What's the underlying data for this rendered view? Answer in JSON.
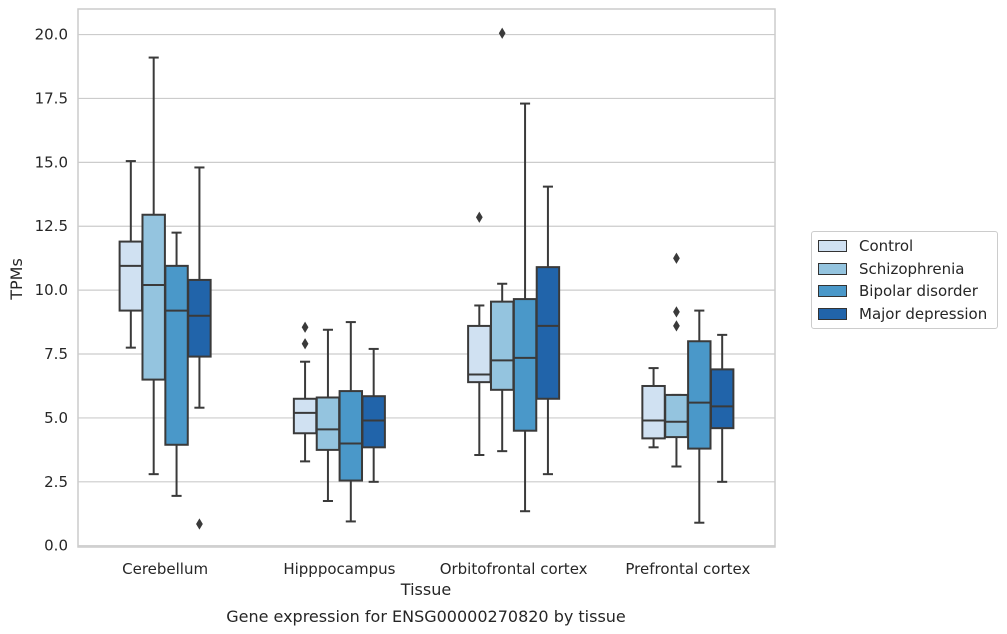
{
  "chart_data": {
    "type": "box",
    "title": "Gene expression for ENSG00000270820 by tissue",
    "xlabel": "Tissue",
    "ylabel": "TPMs",
    "ylim": [
      -0.05,
      21
    ],
    "yticks": [
      "0.0",
      "2.5",
      "5.0",
      "7.5",
      "10.0",
      "12.5",
      "15.0",
      "17.5",
      "20.0"
    ],
    "ytick_values": [
      0,
      2.5,
      5,
      7.5,
      10,
      12.5,
      15,
      17.5,
      20
    ],
    "grid": "horizontal",
    "legend_position": "right",
    "categories": [
      "Cerebellum",
      "Hipppocampus",
      "Orbitofrontal cortex",
      "Prefrontal cortex"
    ],
    "series": [
      {
        "name": "Control",
        "color": "#d0e1f2",
        "boxes": [
          {
            "whislo": 7.75,
            "q1": 9.2,
            "med": 10.95,
            "q3": 11.9,
            "whishi": 15.05,
            "fliers": []
          },
          {
            "whislo": 3.3,
            "q1": 4.4,
            "med": 5.2,
            "q3": 5.75,
            "whishi": 7.2,
            "fliers": [
              7.9,
              8.55
            ]
          },
          {
            "whislo": 3.55,
            "q1": 6.4,
            "med": 6.7,
            "q3": 8.6,
            "whishi": 9.4,
            "fliers": [
              12.85
            ]
          },
          {
            "whislo": 3.85,
            "q1": 4.2,
            "med": 4.9,
            "q3": 6.25,
            "whishi": 6.95,
            "fliers": []
          }
        ]
      },
      {
        "name": "Schizophrenia",
        "color": "#94c4df",
        "boxes": [
          {
            "whislo": 2.8,
            "q1": 6.5,
            "med": 10.2,
            "q3": 12.95,
            "whishi": 19.1,
            "fliers": []
          },
          {
            "whislo": 1.75,
            "q1": 3.75,
            "med": 4.55,
            "q3": 5.8,
            "whishi": 8.45,
            "fliers": []
          },
          {
            "whislo": 3.7,
            "q1": 6.1,
            "med": 7.25,
            "q3": 9.55,
            "whishi": 10.25,
            "fliers": [
              20.05
            ]
          },
          {
            "whislo": 3.1,
            "q1": 4.25,
            "med": 4.85,
            "q3": 5.9,
            "whishi": 5.9,
            "fliers": [
              8.6,
              9.15,
              11.25
            ]
          }
        ]
      },
      {
        "name": "Bipolar disorder",
        "color": "#4a98c9",
        "boxes": [
          {
            "whislo": 1.95,
            "q1": 3.95,
            "med": 9.2,
            "q3": 10.95,
            "whishi": 12.25,
            "fliers": []
          },
          {
            "whislo": 0.95,
            "q1": 2.55,
            "med": 4.0,
            "q3": 6.05,
            "whishi": 8.75,
            "fliers": []
          },
          {
            "whislo": 1.35,
            "q1": 4.5,
            "med": 7.35,
            "q3": 9.65,
            "whishi": 17.3,
            "fliers": []
          },
          {
            "whislo": 0.9,
            "q1": 3.8,
            "med": 5.6,
            "q3": 8.0,
            "whishi": 9.2,
            "fliers": []
          }
        ]
      },
      {
        "name": "Major depression",
        "color": "#2164aa",
        "boxes": [
          {
            "whislo": 5.4,
            "q1": 7.4,
            "med": 9.0,
            "q3": 10.4,
            "whishi": 14.8,
            "fliers": [
              0.85
            ]
          },
          {
            "whislo": 2.5,
            "q1": 3.85,
            "med": 4.9,
            "q3": 5.85,
            "whishi": 7.7,
            "fliers": []
          },
          {
            "whislo": 2.8,
            "q1": 5.75,
            "med": 8.6,
            "q3": 10.9,
            "whishi": 14.05,
            "fliers": []
          },
          {
            "whislo": 2.5,
            "q1": 4.6,
            "med": 5.45,
            "q3": 6.9,
            "whishi": 8.25,
            "fliers": []
          }
        ]
      }
    ]
  }
}
